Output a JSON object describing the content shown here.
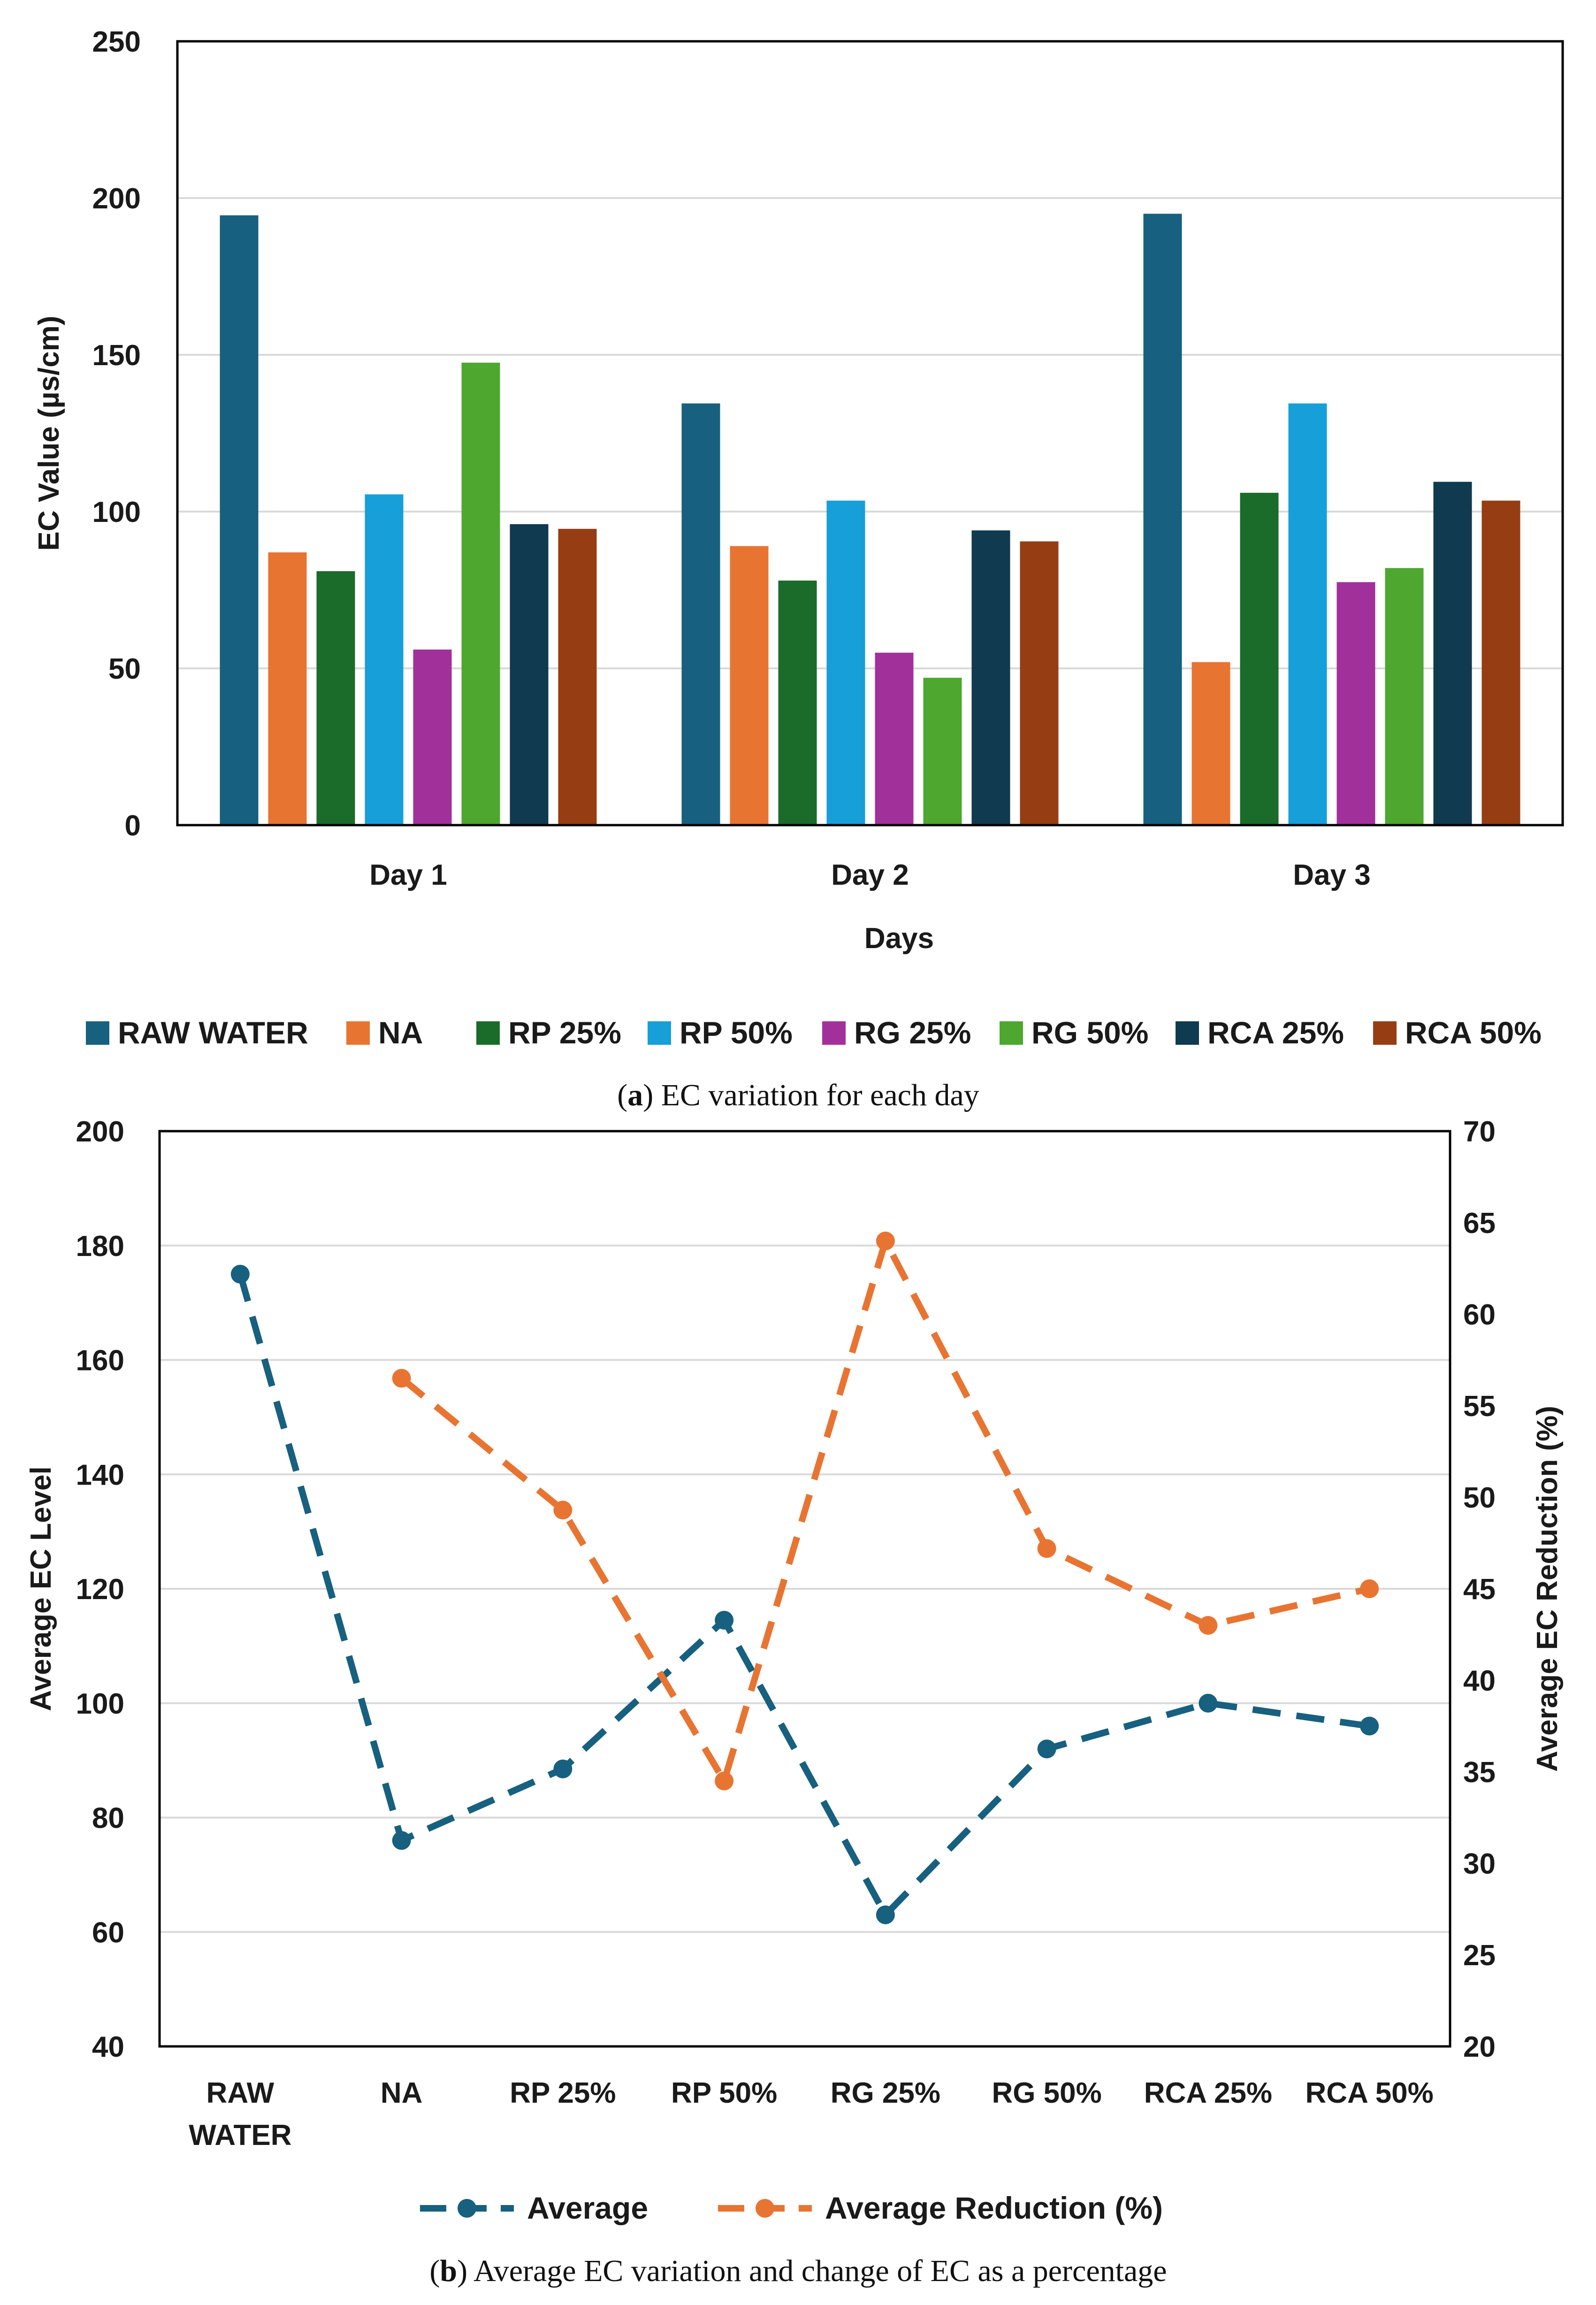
{
  "chart_data": [
    {
      "type": "bar",
      "categories": [
        "Day 1",
        "Day 2",
        "Day 3"
      ],
      "series": [
        {
          "name": "RAW WATER",
          "color": "#17607f",
          "values": [
            194.5,
            134.5,
            195
          ]
        },
        {
          "name": "NA",
          "color": "#e87432",
          "values": [
            87,
            89,
            52
          ]
        },
        {
          "name": "RP 25%",
          "color": "#1b6b2a",
          "values": [
            81,
            78,
            106
          ]
        },
        {
          "name": "RP 50%",
          "color": "#169fd8",
          "values": [
            105.5,
            103.5,
            134.5
          ]
        },
        {
          "name": "RG 25%",
          "color": "#a2309b",
          "values": [
            56,
            55,
            77.5
          ]
        },
        {
          "name": "RG 50%",
          "color": "#4ea72e",
          "values": [
            147.5,
            47,
            82
          ]
        },
        {
          "name": "RCA 25%",
          "color": "#0f3a50",
          "values": [
            96,
            94,
            109.5
          ]
        },
        {
          "name": "RCA 50%",
          "color": "#963d13",
          "values": [
            94.5,
            90.5,
            103.5
          ]
        }
      ],
      "ylim": [
        0,
        250
      ],
      "yticks": [
        "0",
        "50",
        "100",
        "150",
        "200",
        "250"
      ],
      "ylabel": "EC Value (µs/cm)",
      "xlabel": "Days",
      "grid": true,
      "legend": "bottom",
      "caption_label": "a",
      "caption_rest": ") EC variation for each day"
    },
    {
      "type": "line",
      "categories": [
        "RAW WATER",
        "NA",
        "RP 25%",
        "RP 50%",
        "RG 25%",
        "RG 50%",
        "RCA 25%",
        "RCA 50%"
      ],
      "category_lines": [
        [
          "RAW",
          "WATER"
        ],
        [
          "NA"
        ],
        [
          "RP 25%"
        ],
        [
          "RP 50%"
        ],
        [
          "RG 25%"
        ],
        [
          "RG 50%"
        ],
        [
          "RCA 25%"
        ],
        [
          "RCA 50%"
        ]
      ],
      "series": [
        {
          "name": "Average",
          "axis": "left",
          "color": "#17607f",
          "values": [
            175,
            76,
            88.5,
            114.5,
            63,
            92,
            100,
            96
          ]
        },
        {
          "name": "Average Reduction  (%)",
          "axis": "right",
          "color": "#e87432",
          "values": [
            null,
            56.5,
            49.3,
            34.5,
            64,
            47.2,
            43,
            45
          ]
        }
      ],
      "ylim_left": [
        40,
        200
      ],
      "yticks_left": [
        "40",
        "60",
        "80",
        "100",
        "120",
        "140",
        "160",
        "180",
        "200"
      ],
      "ylim_right": [
        20,
        70
      ],
      "yticks_right": [
        "20",
        "25",
        "30",
        "35",
        "40",
        "45",
        "50",
        "55",
        "60",
        "65",
        "70"
      ],
      "ylabel_left": "Average EC Level",
      "ylabel_right": "Average EC Reduction (%)",
      "grid": true,
      "legend": "bottom",
      "caption_label": "b",
      "caption_rest": ") Average EC variation and change of EC as a percentage"
    }
  ]
}
